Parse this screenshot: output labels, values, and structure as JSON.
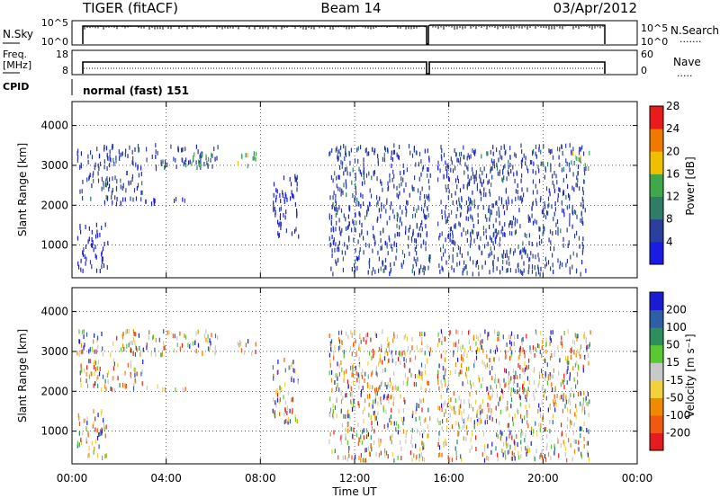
{
  "header": {
    "station": "TIGER (fitACF)",
    "beam": "Beam 14",
    "date": "03/Apr/2012"
  },
  "panels": {
    "nsky": {
      "label": "N.Sky",
      "ticks_left": [
        "10^5",
        "10^0"
      ],
      "ticks_right": [
        "10^5",
        "10^0"
      ],
      "right_label": "N.Search",
      "right_key": "......."
    },
    "freq": {
      "label_line1": "Freq.",
      "label_line2": "[MHz]",
      "ticks_left": [
        "18",
        "8"
      ],
      "ticks_right": [
        "60",
        "0"
      ],
      "right_label": "Nave",
      "right_key": "....."
    },
    "cpid": {
      "label": "CPID",
      "text": "normal (fast) 151"
    }
  },
  "x_axis": {
    "label": "Time UT",
    "ticks": [
      "00:00",
      "04:00",
      "08:00",
      "12:00",
      "16:00",
      "20:00",
      "00:00"
    ],
    "range_hours": [
      0,
      24
    ]
  },
  "chart_data": [
    {
      "type": "heatmap",
      "panel": "power",
      "ylabel": "Slant Range [km]",
      "y_ticks": [
        "1000",
        "2000",
        "3000",
        "4000"
      ],
      "ylim": [
        180,
        4600
      ],
      "colorbar": {
        "label": "Power [dB]",
        "tick_labels": [
          "4",
          "8",
          "12",
          "16",
          "20",
          "24",
          "28"
        ],
        "colors": [
          "#1b1be6",
          "#2a3fa0",
          "#2e7d66",
          "#3fa848",
          "#f0c000",
          "#f07a00",
          "#ea1b1b"
        ]
      },
      "bands": [
        {
          "t0": 0.2,
          "t1": 6.2,
          "r0": 2900,
          "r1": 3500,
          "level": 1
        },
        {
          "t0": 0.3,
          "t1": 3.0,
          "r0": 2100,
          "r1": 2800,
          "level": 1
        },
        {
          "t0": 1.0,
          "t1": 4.8,
          "r0": 2000,
          "r1": 2150,
          "level": 0
        },
        {
          "t0": 0.2,
          "t1": 1.5,
          "r0": 300,
          "r1": 1500,
          "level": 0
        },
        {
          "t0": 5.0,
          "t1": 6.0,
          "r0": 2950,
          "r1": 3300,
          "level": 3
        },
        {
          "t0": 7.0,
          "t1": 7.8,
          "r0": 2900,
          "r1": 3300,
          "level": 3
        },
        {
          "t0": 8.5,
          "t1": 9.6,
          "r0": 1200,
          "r1": 2800,
          "level": 0
        },
        {
          "t0": 10.9,
          "t1": 15.2,
          "r0": 250,
          "r1": 3500,
          "level": 1
        },
        {
          "t0": 15.5,
          "t1": 21.8,
          "r0": 250,
          "r1": 3500,
          "level": 1
        },
        {
          "t0": 21.2,
          "t1": 22.0,
          "r0": 2900,
          "r1": 3300,
          "level": 3
        }
      ]
    },
    {
      "type": "heatmap",
      "panel": "velocity",
      "ylabel": "Slant Range [km]",
      "y_ticks": [
        "1000",
        "2000",
        "3000",
        "4000"
      ],
      "ylim": [
        180,
        4600
      ],
      "colorbar": {
        "label": "Velocity [m s⁻¹]",
        "tick_labels": [
          "200",
          "100",
          "50",
          "15",
          "-15",
          "-50",
          "-100",
          "-200"
        ],
        "colors": [
          "#1b1bd6",
          "#2d5fa6",
          "#2e8f5e",
          "#59c832",
          "#c8c8c8",
          "#f2d23c",
          "#f08a00",
          "#f05a10",
          "#e61b1b"
        ]
      },
      "bands": [
        {
          "t0": 0.2,
          "t1": 6.2,
          "r0": 2900,
          "r1": 3500
        },
        {
          "t0": 0.3,
          "t1": 3.0,
          "r0": 2100,
          "r1": 2800
        },
        {
          "t0": 1.0,
          "t1": 4.8,
          "r0": 2000,
          "r1": 2150
        },
        {
          "t0": 0.2,
          "t1": 1.5,
          "r0": 300,
          "r1": 1500
        },
        {
          "t0": 7.0,
          "t1": 7.8,
          "r0": 2900,
          "r1": 3300
        },
        {
          "t0": 8.5,
          "t1": 9.6,
          "r0": 1200,
          "r1": 2800
        },
        {
          "t0": 10.9,
          "t1": 15.2,
          "r0": 250,
          "r1": 3500
        },
        {
          "t0": 15.5,
          "t1": 22.0,
          "r0": 250,
          "r1": 3500
        }
      ]
    }
  ]
}
